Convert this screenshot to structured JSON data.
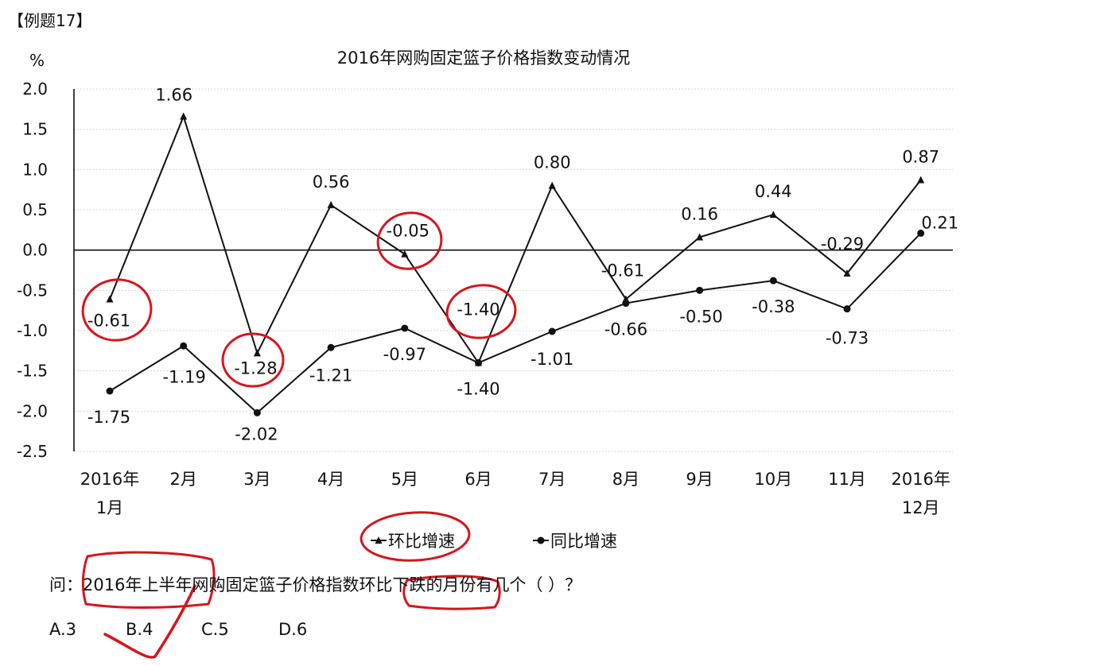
{
  "example_label": "【例题17】",
  "question": "问：2016年上半年网购固定篮子价格指数环比下跌的月份有几个（ ）？",
  "options": [
    "A.3",
    "B.4",
    "C.5",
    "D.6"
  ],
  "chart_data": {
    "type": "line",
    "title": "2016年网购固定篮子价格指数变动情况",
    "ylabel": "%",
    "categories": [
      [
        "2016年",
        "1月"
      ],
      [
        "2月"
      ],
      [
        "3月"
      ],
      [
        "4月"
      ],
      [
        "5月"
      ],
      [
        "6月"
      ],
      [
        "7月"
      ],
      [
        "8月"
      ],
      [
        "9月"
      ],
      [
        "10月"
      ],
      [
        "11月"
      ],
      [
        "2016年",
        "12月"
      ]
    ],
    "ylim": [
      -2.5,
      2.0
    ],
    "yticks": [
      "2.0",
      "1.5",
      "1.0",
      "0.5",
      "0.0",
      "-0.5",
      "-1.0",
      "-1.5",
      "-2.0",
      "-2.5"
    ],
    "grid": true,
    "legend_position": "bottom",
    "series": [
      {
        "name": "环比增速",
        "marker": "triangle",
        "values": [
          -0.61,
          1.66,
          -1.28,
          0.56,
          -0.05,
          -1.4,
          0.8,
          -0.61,
          0.16,
          0.44,
          -0.29,
          0.87
        ],
        "labels": [
          "-0.61",
          "1.66",
          "-1.28",
          "0.56",
          "-0.05",
          "-1.40",
          "0.80",
          "-0.61",
          "0.16",
          "0.44",
          "-0.29",
          "0.87"
        ]
      },
      {
        "name": "同比增速",
        "marker": "circle",
        "values": [
          -1.75,
          -1.19,
          -2.02,
          -1.21,
          -0.97,
          -1.4,
          -1.01,
          -0.66,
          -0.5,
          -0.38,
          -0.73,
          0.21
        ],
        "labels": [
          "-1.75",
          "-1.19",
          "-2.02",
          "-1.21",
          "-0.97",
          "-1.40",
          "-1.01",
          "-0.66",
          "-0.50",
          "-0.38",
          "-0.73",
          "0.21"
        ]
      }
    ],
    "colors": {
      "line": "#111111",
      "grid": "#d9d9d9",
      "annotation": "#d8141c"
    }
  }
}
